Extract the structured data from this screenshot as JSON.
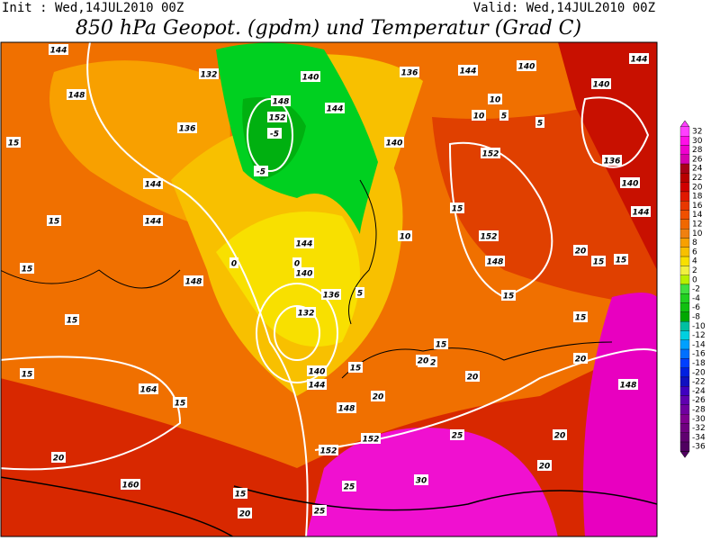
{
  "header": {
    "init": "Init : Wed,14JUL2010 00Z",
    "valid": "Valid: Wed,14JUL2010 00Z",
    "title": "850 hPa Geopot. (gpdm) und Temperatur (Grad C)"
  },
  "colorbar": {
    "ticks": [
      32,
      30,
      28,
      26,
      24,
      22,
      20,
      18,
      16,
      14,
      12,
      10,
      8,
      6,
      4,
      2,
      0,
      -2,
      -4,
      -6,
      -8,
      -10,
      -12,
      -14,
      -16,
      -18,
      -20,
      -22,
      -24,
      -26,
      -28,
      -30,
      -32,
      -34,
      -36
    ],
    "colors": [
      "#ff40ff",
      "#ff10e8",
      "#f000d0",
      "#d800b0",
      "#a80018",
      "#b80000",
      "#d00000",
      "#e01800",
      "#e83800",
      "#f05000",
      "#f06800",
      "#f08010",
      "#f8a000",
      "#f8c000",
      "#f8e000",
      "#f0f040",
      "#b8f000",
      "#40e040",
      "#20d020",
      "#10c010",
      "#00a800",
      "#00c0a0",
      "#00d0e0",
      "#00a0ff",
      "#0070ff",
      "#0040ff",
      "#0020e0",
      "#1010c0",
      "#4000c0",
      "#6000b0",
      "#7000a0",
      "#800090",
      "#700080",
      "#600070",
      "#500060"
    ]
  },
  "contour_labels": [
    "144",
    "148",
    "136",
    "132",
    "148",
    "152",
    "-5",
    "-5",
    "140",
    "144",
    "140",
    "136",
    "144",
    "140",
    "144",
    "140",
    "136",
    "140",
    "144",
    "152",
    "152",
    "148",
    "15",
    "15",
    "15",
    "15",
    "15",
    "164",
    "160",
    "20",
    "15",
    "15",
    "20",
    "25",
    "25",
    "30",
    "25",
    "20",
    "20",
    "20",
    "20",
    "148",
    "152",
    "152",
    "152",
    "148",
    "140",
    "144",
    "132",
    "136",
    "140",
    "144",
    "148",
    "144",
    "144",
    "0",
    "0",
    "5",
    "10",
    "15",
    "15",
    "20",
    "15",
    "15",
    "15",
    "20",
    "15",
    "10",
    "10",
    "5",
    "5",
    "15",
    "20"
  ]
}
